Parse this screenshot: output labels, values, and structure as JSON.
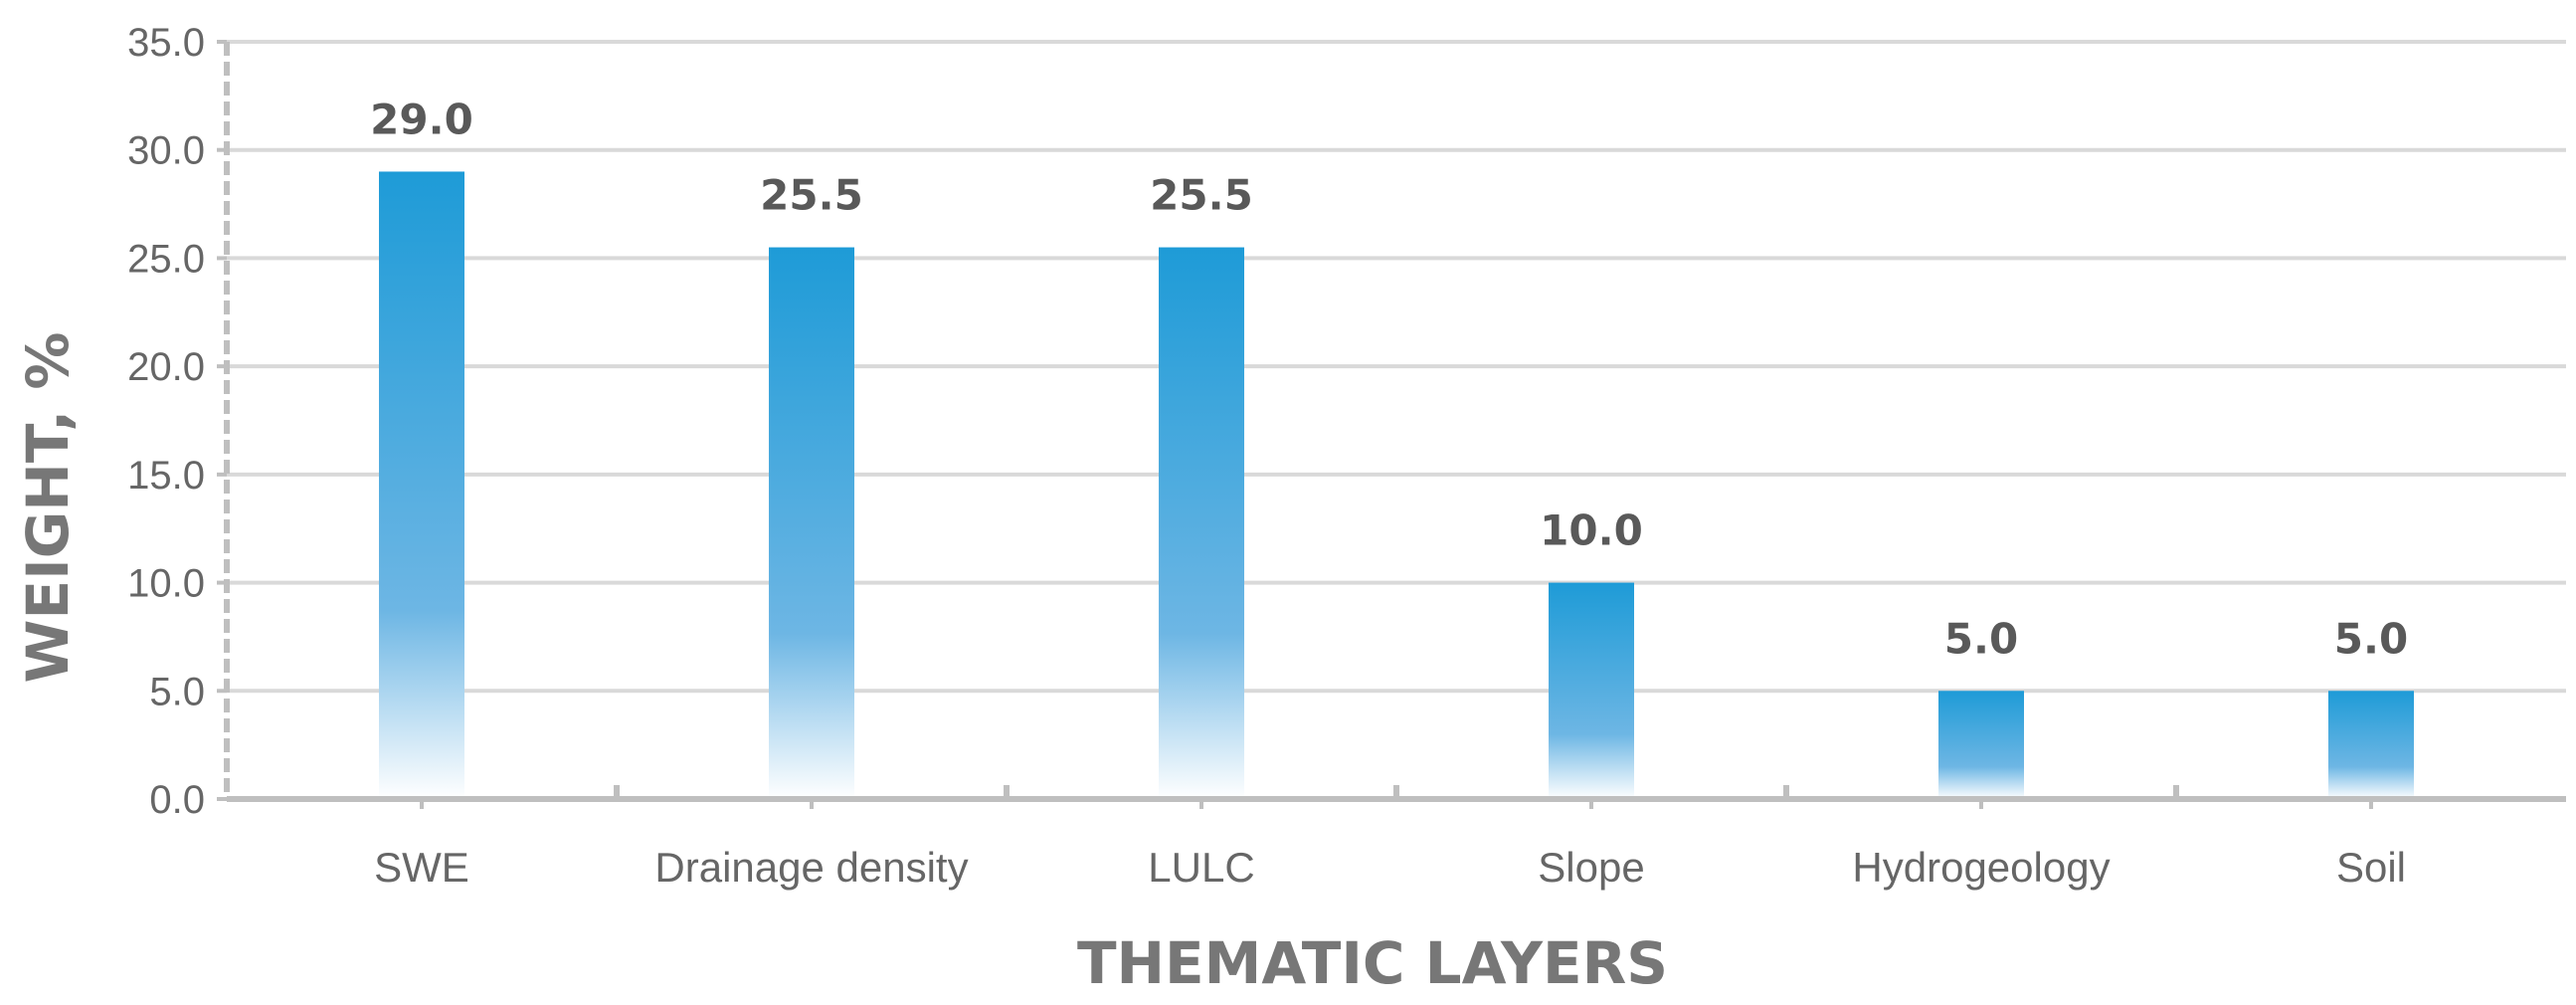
{
  "chart_data": {
    "type": "bar",
    "categories": [
      "SWE",
      "Drainage density",
      "LULC",
      "Slope",
      "Hydrogeology",
      "Soil"
    ],
    "values": [
      29.0,
      25.5,
      25.5,
      10.0,
      5.0,
      5.0
    ],
    "data_labels": [
      "29.0",
      "25.5",
      "25.5",
      "10.0",
      "5.0",
      "5.0"
    ],
    "y_tick_labels": [
      "0.0",
      "5.0",
      "10.0",
      "15.0",
      "20.0",
      "25.0",
      "30.0",
      "35.0"
    ],
    "xlabel": "THEMATIC LAYERS",
    "ylabel": "WEIGHT, %",
    "ylim": [
      0,
      35
    ],
    "grid": true,
    "legend": "none",
    "colors": {
      "bar_top": "#1E9BD7",
      "bar_mid": "#6DB6E4",
      "bar_bottom": "#FFFFFF",
      "axis": "#BFBFBF",
      "grid": "#D9D9D9",
      "text": "#666666"
    }
  }
}
